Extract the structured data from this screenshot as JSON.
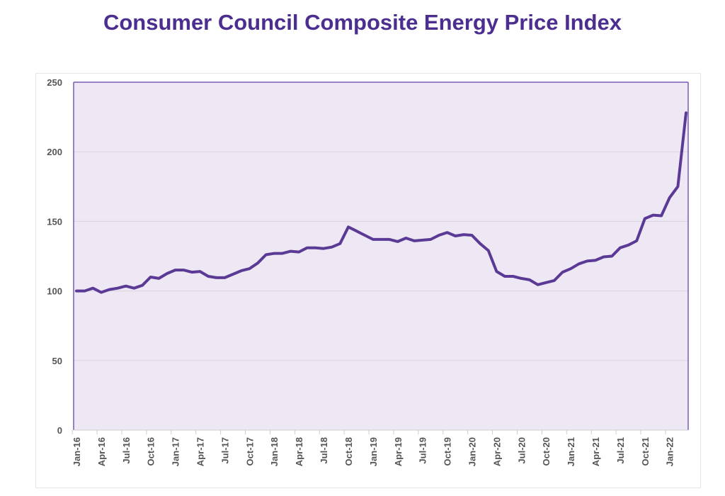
{
  "chart_data": {
    "type": "line",
    "title": "Consumer Council Composite Energy Price Index",
    "xlabel": "",
    "ylabel": "",
    "ylim": [
      0,
      250
    ],
    "yticks": [
      0,
      50,
      100,
      150,
      200,
      250
    ],
    "grid": true,
    "color": "#5b3a96",
    "plot_background": "#ede8f3",
    "x_tick_labels": [
      "Jan-16",
      "Apr-16",
      "Jul-16",
      "Oct-16",
      "Jan-17",
      "Apr-17",
      "Jul-17",
      "Oct-17",
      "Jan-18",
      "Apr-18",
      "Jul-18",
      "Oct-18",
      "Jan-19",
      "Apr-19",
      "Jul-19",
      "Oct-19",
      "Jan-20",
      "Apr-20",
      "Jul-20",
      "Oct-20",
      "Jan-21",
      "Apr-21",
      "Jul-21",
      "Oct-21",
      "Jan-22"
    ],
    "x_start": "Jan-16",
    "x_end": "Mar-22",
    "values": [
      100,
      100,
      102,
      99,
      101,
      102,
      103.5,
      102,
      104,
      110,
      109,
      112.5,
      115,
      115,
      113.5,
      114,
      110.5,
      109.5,
      109.5,
      112,
      114.5,
      116,
      120,
      126,
      127,
      127,
      128.5,
      128,
      131,
      131,
      130.5,
      131.5,
      134,
      146,
      143,
      140,
      137,
      137,
      137,
      135.5,
      138,
      136,
      136.5,
      137,
      140,
      142,
      139.5,
      140.5,
      140,
      134,
      129,
      114,
      110.5,
      110.5,
      109,
      108,
      104.5,
      106,
      107.5,
      113.5,
      116,
      119.5,
      121.5,
      122,
      124.5,
      125,
      131,
      133,
      136,
      152,
      154.5,
      154,
      167,
      175,
      228
    ]
  }
}
